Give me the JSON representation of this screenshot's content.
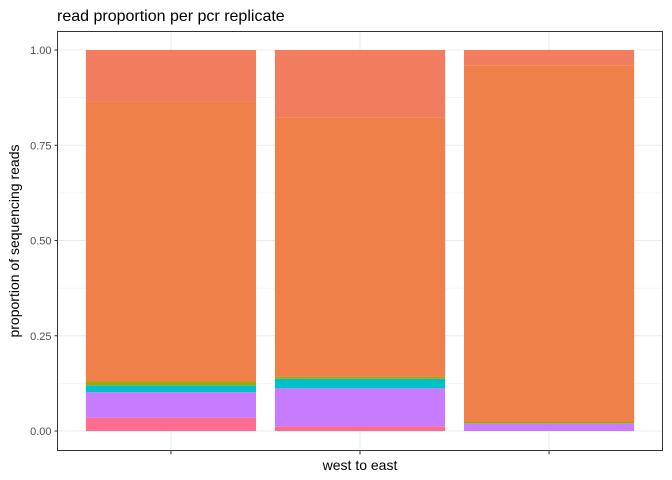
{
  "chart_data": {
    "type": "bar",
    "stacked": true,
    "title": "read proportion per pcr replicate",
    "xlabel": "west to east",
    "ylabel": "proportion of sequencing reads",
    "ylim": [
      0,
      1
    ],
    "y_ticks": [
      "0.00",
      "0.25",
      "0.50",
      "0.75",
      "1.00"
    ],
    "categories": [
      "",
      "",
      ""
    ],
    "grid": true,
    "legend": "none",
    "stack_order_bottom_to_top": true,
    "series": [
      {
        "color": "#FF6C91",
        "values": [
          0.035,
          0.012,
          0.0
        ]
      },
      {
        "color": "#C77CFF",
        "values": [
          0.067,
          0.1,
          0.02
        ]
      },
      {
        "color": "#00C1C8",
        "values": [
          0.018,
          0.025,
          0.0
        ]
      },
      {
        "color": "#A3A500",
        "values": [
          0.01,
          0.005,
          0.005
        ]
      },
      {
        "color": "#EF8049",
        "values": [
          0.735,
          0.68,
          0.935
        ]
      },
      {
        "color": "#F27C5E",
        "values": [
          0.135,
          0.178,
          0.04
        ]
      }
    ]
  }
}
